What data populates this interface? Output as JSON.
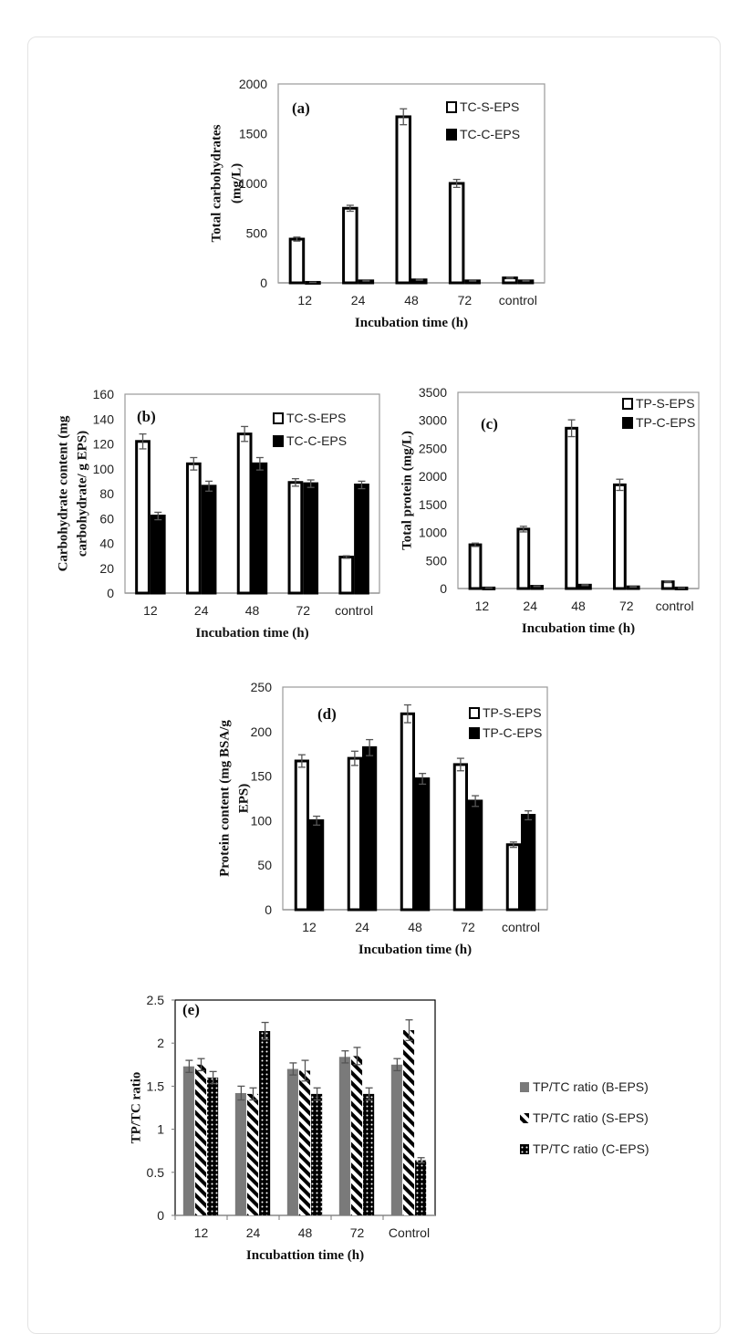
{
  "chart_data": [
    {
      "type": "bar",
      "annotation": "(a)",
      "categories": [
        "12",
        "24",
        "48",
        "72",
        "control"
      ],
      "xlabel": "Incubation   time (h)",
      "ylabel": [
        "Total  carbohydrates",
        "(mg/L)"
      ],
      "ylim": [
        0,
        2000
      ],
      "yticks": [
        0,
        500,
        1000,
        1500,
        2000
      ],
      "legend": "top-right",
      "series": [
        {
          "name": "TC-S-EPS",
          "style": "open",
          "values": [
            440,
            750,
            1670,
            1000,
            50
          ],
          "errors": [
            20,
            30,
            80,
            40,
            5
          ]
        },
        {
          "name": "TC-C-EPS",
          "style": "solid",
          "values": [
            5,
            20,
            30,
            20,
            20
          ],
          "errors": [
            2,
            3,
            5,
            3,
            3
          ]
        }
      ]
    },
    {
      "type": "bar",
      "annotation": "(b)",
      "categories": [
        "12",
        "24",
        "48",
        "72",
        "control"
      ],
      "xlabel": "Incubation   time (h)",
      "ylabel": [
        "Carbohydrate   content  (mg",
        "carbohydrate/  g  EPS)"
      ],
      "ylim": [
        0,
        160
      ],
      "yticks": [
        0,
        20,
        40,
        60,
        80,
        100,
        120,
        140,
        160
      ],
      "legend": "top-right",
      "series": [
        {
          "name": "TC-S-EPS",
          "style": "open",
          "values": [
            122,
            104,
            128,
            89,
            29
          ],
          "errors": [
            6,
            5,
            6,
            3,
            1
          ]
        },
        {
          "name": "TC-C-EPS",
          "style": "solid",
          "values": [
            62,
            86,
            104,
            88,
            87
          ],
          "errors": [
            3,
            4,
            5,
            3,
            3
          ]
        }
      ]
    },
    {
      "type": "bar",
      "annotation": "(c)",
      "categories": [
        "12",
        "24",
        "48",
        "72",
        "control"
      ],
      "xlabel": "Incubation   time (h)",
      "ylabel": [
        "Total  protein  (mg/L)"
      ],
      "ylim": [
        0,
        3500
      ],
      "yticks": [
        0,
        500,
        1000,
        1500,
        2000,
        2500,
        3000,
        3500
      ],
      "legend": "top-right",
      "series": [
        {
          "name": "TP-S-EPS",
          "style": "open",
          "values": [
            780,
            1060,
            2860,
            1850,
            120
          ],
          "errors": [
            30,
            50,
            150,
            100,
            10
          ]
        },
        {
          "name": "TP-C-EPS",
          "style": "solid",
          "values": [
            10,
            40,
            60,
            30,
            10
          ],
          "errors": [
            3,
            5,
            8,
            5,
            3
          ]
        }
      ]
    },
    {
      "type": "bar",
      "annotation": "(d)",
      "categories": [
        "12",
        "24",
        "48",
        "72",
        "control"
      ],
      "xlabel": "Incubation   time (h)",
      "ylabel": [
        "Protein  content  (mg  BSA/g",
        "EPS)"
      ],
      "ylim": [
        0,
        250
      ],
      "yticks": [
        0,
        50,
        100,
        150,
        200,
        250
      ],
      "legend": "top-right",
      "series": [
        {
          "name": "TP-S-EPS",
          "style": "open",
          "values": [
            167,
            170,
            220,
            163,
            73
          ],
          "errors": [
            7,
            8,
            10,
            7,
            3
          ]
        },
        {
          "name": "TP-C-EPS",
          "style": "solid",
          "values": [
            100,
            182,
            147,
            122,
            106
          ],
          "errors": [
            5,
            9,
            6,
            6,
            5
          ]
        }
      ]
    },
    {
      "type": "bar",
      "annotation": "(e)",
      "categories": [
        "12",
        "24",
        "48",
        "72",
        "Control"
      ],
      "xlabel": "Incubattion   time (h)",
      "ylabel": [
        "TP/TC  ratio"
      ],
      "ylim": [
        0,
        2.5
      ],
      "yticks": [
        "0",
        "0.5",
        "1",
        "1.5",
        "2",
        "2.5"
      ],
      "legend": "right",
      "series": [
        {
          "name": "TP/TC ratio (B-EPS)",
          "style": "gray",
          "values": [
            1.73,
            1.42,
            1.7,
            1.84,
            1.75
          ],
          "errors": [
            0.07,
            0.08,
            0.07,
            0.07,
            0.07
          ]
        },
        {
          "name": "TP/TC ratio (S-EPS)",
          "style": "diagonal-stripes",
          "values": [
            1.75,
            1.41,
            1.68,
            1.85,
            2.15
          ],
          "errors": [
            0.07,
            0.07,
            0.12,
            0.1,
            0.12
          ]
        },
        {
          "name": "TP/TC ratio (C-EPS)",
          "style": "dots",
          "values": [
            1.6,
            2.14,
            1.41,
            1.41,
            0.64
          ],
          "errors": [
            0.07,
            0.1,
            0.07,
            0.07,
            0.03
          ]
        }
      ]
    }
  ]
}
